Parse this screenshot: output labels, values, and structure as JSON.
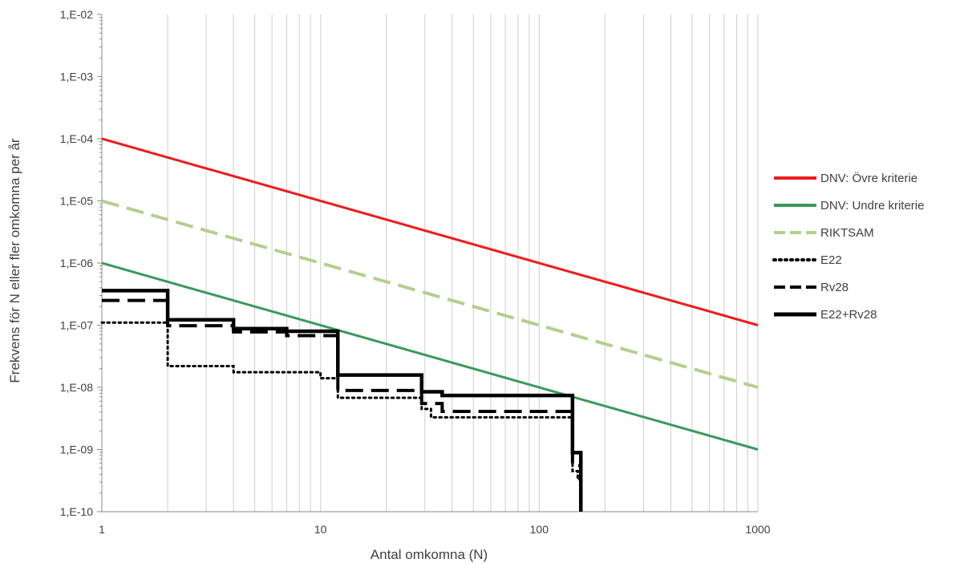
{
  "chart_data": {
    "type": "line",
    "title": "",
    "xlabel": "Antal omkomna (N)",
    "ylabel": "Frekvens för N eller fler omkomna per år",
    "x_scale": "log",
    "y_scale": "log",
    "xlim": [
      1,
      1000
    ],
    "ylim": [
      1e-10,
      0.01
    ],
    "x_ticks": [
      1,
      10,
      100,
      1000
    ],
    "x_tick_labels": [
      "1",
      "10",
      "100",
      "1000"
    ],
    "y_ticks": [
      1e-10,
      1e-09,
      1e-08,
      1e-07,
      1e-06,
      1e-05,
      0.0001,
      0.001,
      0.01
    ],
    "y_tick_labels": [
      "1,E-10",
      "1,E-09",
      "1,E-08",
      "1,E-07",
      "1,E-06",
      "1,E-05",
      "1,E-04",
      "1,E-03",
      "1,E-02"
    ],
    "grid": "vertical minor",
    "legend_position": "right",
    "series": [
      {
        "name": "DNV: Övre kriterie",
        "color": "#ee1c1c",
        "style": "solid",
        "points": [
          [
            1,
            0.0001
          ],
          [
            1000,
            1e-07
          ]
        ]
      },
      {
        "name": "DNV: Undre kriterie",
        "color": "#3a9a5b",
        "style": "solid",
        "points": [
          [
            1,
            1e-06
          ],
          [
            1000,
            1e-09
          ]
        ]
      },
      {
        "name": "RIKTSAM",
        "color": "#b4cf8e",
        "style": "dashed",
        "points": [
          [
            1,
            1e-05
          ],
          [
            1000,
            1e-08
          ]
        ]
      },
      {
        "name": "E22",
        "color": "#000000",
        "style": "dotted",
        "points": [
          [
            1,
            1.1e-07
          ],
          [
            2,
            1.1e-07
          ],
          [
            2,
            2.2e-08
          ],
          [
            4,
            2.2e-08
          ],
          [
            4,
            1.75e-08
          ],
          [
            10,
            1.75e-08
          ],
          [
            10,
            1.4e-08
          ],
          [
            12,
            1.4e-08
          ],
          [
            12,
            6.8e-09
          ],
          [
            29,
            6.8e-09
          ],
          [
            29,
            4.5e-09
          ],
          [
            32,
            4.5e-09
          ],
          [
            32,
            3.3e-09
          ],
          [
            142,
            3.3e-09
          ],
          [
            142,
            4.5e-10
          ],
          [
            150,
            4.5e-10
          ],
          [
            150,
            3.3e-10
          ],
          [
            155,
            3.3e-10
          ],
          [
            155,
            1e-10
          ]
        ]
      },
      {
        "name": "Rv28",
        "color": "#000000",
        "style": "dashed",
        "points": [
          [
            1,
            2.5e-07
          ],
          [
            2,
            2.5e-07
          ],
          [
            2,
            9.8e-08
          ],
          [
            4,
            9.8e-08
          ],
          [
            4,
            7.8e-08
          ],
          [
            7,
            7.8e-08
          ],
          [
            7,
            6.8e-08
          ],
          [
            12,
            6.8e-08
          ],
          [
            12,
            8.9e-09
          ],
          [
            29,
            8.9e-09
          ],
          [
            29,
            5.5e-09
          ],
          [
            36,
            5.5e-09
          ],
          [
            36,
            4.1e-09
          ],
          [
            142,
            4.1e-09
          ],
          [
            142,
            5.5e-10
          ],
          [
            155,
            5.5e-10
          ],
          [
            155,
            1e-10
          ]
        ]
      },
      {
        "name": "E22+Rv28",
        "color": "#000000",
        "style": "solid",
        "points": [
          [
            1,
            3.6e-07
          ],
          [
            2,
            3.6e-07
          ],
          [
            2,
            1.22e-07
          ],
          [
            4,
            1.22e-07
          ],
          [
            4,
            8.8e-08
          ],
          [
            7,
            8.8e-08
          ],
          [
            7,
            8e-08
          ],
          [
            12,
            8e-08
          ],
          [
            12,
            1.58e-08
          ],
          [
            29,
            1.58e-08
          ],
          [
            29,
            8.5e-09
          ],
          [
            36,
            8.5e-09
          ],
          [
            36,
            7.4e-09
          ],
          [
            142,
            7.4e-09
          ],
          [
            142,
            8.9e-10
          ],
          [
            155,
            8.9e-10
          ],
          [
            155,
            1e-10
          ]
        ]
      }
    ]
  }
}
